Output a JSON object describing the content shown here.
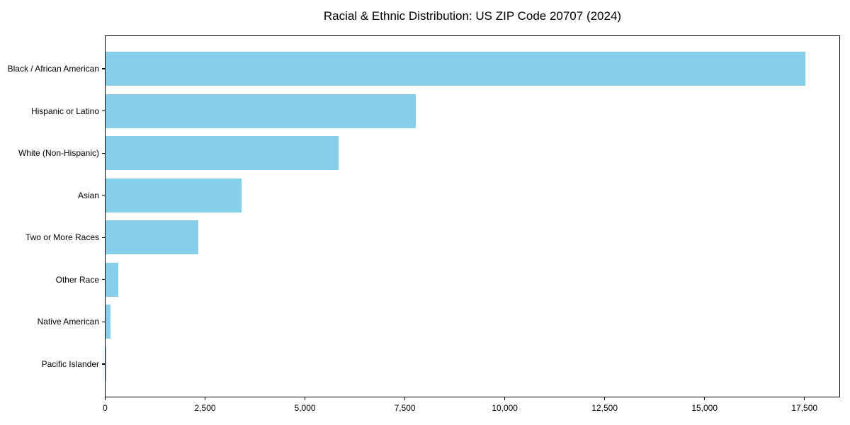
{
  "chart_data": {
    "type": "bar",
    "orientation": "horizontal",
    "title": "Racial & Ethnic Distribution: US ZIP Code 20707 (2024)",
    "categories": [
      "Black / African American",
      "Hispanic or Latino",
      "White (Non-Hispanic)",
      "Asian",
      "Two or More Races",
      "Other Race",
      "Native American",
      "Pacific Islander"
    ],
    "values": [
      17530,
      7770,
      5840,
      3410,
      2330,
      320,
      125,
      20
    ],
    "xlabel": "",
    "ylabel": "",
    "xlim": [
      0,
      18400
    ],
    "xticks": [
      0,
      2500,
      5000,
      7500,
      10000,
      12500,
      15000,
      17500
    ],
    "xtick_labels": [
      "0",
      "2,500",
      "5,000",
      "7,500",
      "10,000",
      "12,500",
      "15,000",
      "17,500"
    ],
    "grid": false,
    "legend": null,
    "bar_color": "#87CEEB",
    "axis_color": "#000000",
    "background_color": "#ffffff"
  }
}
